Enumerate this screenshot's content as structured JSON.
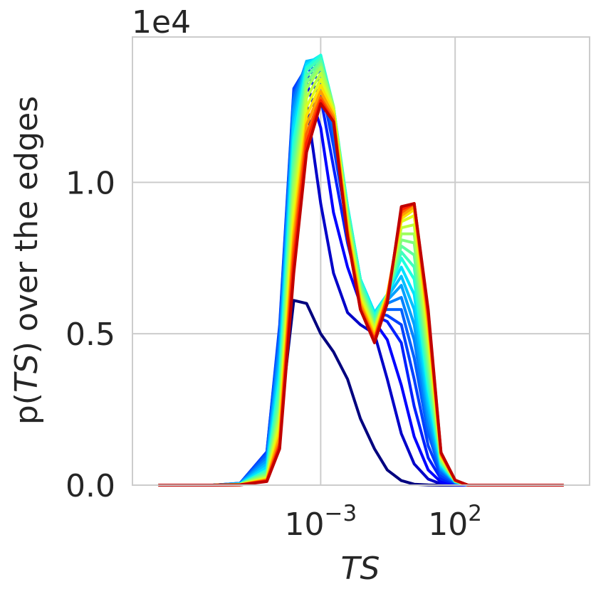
{
  "chart_data": {
    "type": "line",
    "xscale": "log",
    "xlabel_var": "TS",
    "ylabel_prefix": "p(",
    "ylabel_var": "TS",
    "ylabel_suffix": ") over the edges",
    "offset_text": "1e4",
    "xlim": [
      1e-10,
      10000000.0
    ],
    "ylim": [
      0,
      14800
    ],
    "x_ticks": [
      {
        "value": 0.001,
        "base": "10",
        "exp": "−3"
      },
      {
        "value": 100,
        "base": "10",
        "exp": "2"
      }
    ],
    "y_ticks": [
      {
        "value": 0,
        "label": "0.0"
      },
      {
        "value": 5000,
        "label": "0.5"
      },
      {
        "value": 10000,
        "label": "1.0"
      }
    ],
    "grid": true,
    "colormap": "jet",
    "series_count": 22,
    "series_x": [
      1e-09,
      1e-07,
      1e-06,
      1e-05,
      3e-05,
      0.0001,
      0.0003,
      0.001,
      0.003,
      0.01,
      0.03,
      0.1,
      0.3,
      1,
      3,
      10,
      30,
      100,
      300,
      1000,
      10000.0,
      1000000.0
    ],
    "series": [
      {
        "color": "#00007f",
        "values": [
          0,
          0,
          20,
          400,
          2000,
          6100,
          6000,
          5000,
          4400,
          3500,
          2200,
          1200,
          500,
          150,
          30,
          5,
          0,
          0,
          0,
          0,
          0,
          0
        ]
      },
      {
        "color": "#0000c8",
        "values": [
          0,
          0,
          40,
          900,
          4500,
          12500,
          12600,
          9300,
          7000,
          5700,
          5300,
          5000,
          3500,
          1700,
          700,
          200,
          40,
          10,
          0,
          0,
          0,
          0
        ]
      },
      {
        "color": "#0000ff",
        "values": [
          0,
          0,
          50,
          1000,
          5000,
          12800,
          13300,
          11800,
          9000,
          7200,
          6000,
          5400,
          4800,
          3300,
          1600,
          500,
          100,
          20,
          0,
          0,
          0,
          0
        ]
      },
      {
        "color": "#0020ff",
        "values": [
          0,
          0,
          60,
          1100,
          5200,
          13000,
          13600,
          12800,
          10500,
          8000,
          6300,
          5600,
          5400,
          4700,
          2600,
          900,
          200,
          40,
          0,
          0,
          0,
          0
        ]
      },
      {
        "color": "#0040ff",
        "values": [
          0,
          0,
          60,
          1100,
          5300,
          13100,
          13800,
          13300,
          11200,
          8500,
          6500,
          5700,
          5600,
          5300,
          3500,
          1300,
          300,
          60,
          0,
          0,
          0,
          0
        ]
      },
      {
        "color": "#0060ff",
        "values": [
          0,
          0,
          60,
          1000,
          5000,
          12900,
          13900,
          13600,
          11600,
          8800,
          6600,
          5700,
          5800,
          5800,
          4200,
          1700,
          400,
          80,
          0,
          0,
          0,
          0
        ]
      },
      {
        "color": "#0080ff",
        "values": [
          0,
          0,
          50,
          900,
          4700,
          12700,
          14000,
          13800,
          11900,
          9000,
          6700,
          5700,
          6000,
          6200,
          4800,
          2000,
          500,
          90,
          0,
          0,
          0,
          0
        ]
      },
      {
        "color": "#00a0ff",
        "values": [
          0,
          0,
          50,
          800,
          4400,
          12400,
          14000,
          14000,
          12100,
          9100,
          6800,
          5700,
          6100,
          6600,
          5300,
          2300,
          550,
          100,
          0,
          0,
          0,
          0
        ]
      },
      {
        "color": "#00c0ff",
        "values": [
          0,
          0,
          40,
          700,
          4100,
          12100,
          14000,
          14100,
          12300,
          9200,
          6800,
          5700,
          6200,
          6900,
          5800,
          2600,
          600,
          110,
          0,
          0,
          0,
          0
        ]
      },
      {
        "color": "#00e0ff",
        "values": [
          0,
          0,
          40,
          600,
          3800,
          11800,
          13900,
          14200,
          12400,
          9200,
          6800,
          5700,
          6300,
          7200,
          6300,
          2900,
          650,
          120,
          0,
          0,
          0,
          0
        ]
      },
      {
        "color": "#1dffdf",
        "values": [
          0,
          0,
          30,
          500,
          3500,
          11400,
          13800,
          14200,
          12500,
          9200,
          6800,
          5600,
          6300,
          7500,
          6800,
          3200,
          700,
          120,
          0,
          0,
          0,
          0
        ]
      },
      {
        "color": "#3dffbd",
        "values": [
          0,
          0,
          30,
          450,
          3200,
          11000,
          13700,
          14100,
          12500,
          9100,
          6700,
          5500,
          6300,
          7700,
          7200,
          3500,
          740,
          130,
          0,
          0,
          0,
          0
        ]
      },
      {
        "color": "#5dff9d",
        "values": [
          0,
          0,
          25,
          400,
          2900,
          10600,
          13500,
          14000,
          12500,
          9000,
          6600,
          5400,
          6300,
          7900,
          7600,
          3800,
          780,
          130,
          0,
          0,
          0,
          0
        ]
      },
      {
        "color": "#7dff7d",
        "values": [
          0,
          0,
          25,
          350,
          2600,
          10200,
          13300,
          13900,
          12500,
          8900,
          6500,
          5300,
          6300,
          8100,
          8000,
          4100,
          820,
          140,
          0,
          0,
          0,
          0
        ]
      },
      {
        "color": "#9dff5d",
        "values": [
          0,
          0,
          20,
          300,
          2400,
          9800,
          13100,
          13800,
          12500,
          8800,
          6400,
          5200,
          6300,
          8300,
          8300,
          4400,
          860,
          140,
          0,
          0,
          0,
          0
        ]
      },
      {
        "color": "#bdff3d",
        "values": [
          0,
          0,
          20,
          260,
          2200,
          9400,
          12800,
          13600,
          12400,
          8700,
          6300,
          5200,
          6300,
          8500,
          8600,
          4700,
          900,
          150,
          0,
          0,
          0,
          0
        ]
      },
      {
        "color": "#ddff1d",
        "values": [
          0,
          0,
          15,
          230,
          2000,
          9000,
          12500,
          13400,
          12400,
          8600,
          6200,
          5100,
          6300,
          8700,
          8900,
          5000,
          940,
          150,
          0,
          0,
          0,
          0
        ]
      },
      {
        "color": "#ffe000",
        "values": [
          0,
          0,
          15,
          200,
          1800,
          8600,
          12200,
          13200,
          12300,
          8500,
          6100,
          5000,
          6300,
          8800,
          9100,
          5200,
          980,
          150,
          0,
          0,
          0,
          0
        ]
      },
      {
        "color": "#ffa000",
        "values": [
          0,
          0,
          10,
          180,
          1600,
          8200,
          11900,
          13000,
          12200,
          8400,
          6000,
          4900,
          6200,
          8900,
          9200,
          5400,
          1000,
          160,
          0,
          0,
          0,
          0
        ]
      },
      {
        "color": "#ff6000",
        "values": [
          0,
          0,
          10,
          160,
          1400,
          7800,
          11600,
          12800,
          12100,
          8300,
          5900,
          4800,
          6200,
          9000,
          9300,
          5600,
          1040,
          160,
          0,
          0,
          0,
          0
        ]
      },
      {
        "color": "#ff2000",
        "values": [
          0,
          0,
          10,
          140,
          1300,
          7400,
          11300,
          12700,
          12000,
          8200,
          5800,
          4800,
          6100,
          9100,
          9300,
          5700,
          1060,
          160,
          0,
          0,
          0,
          0
        ]
      },
      {
        "color": "#c00000",
        "values": [
          0,
          0,
          10,
          120,
          1200,
          7000,
          11000,
          12600,
          12000,
          8200,
          5800,
          4700,
          6000,
          9200,
          9300,
          5800,
          1080,
          170,
          0,
          0,
          0,
          0
        ]
      }
    ]
  }
}
